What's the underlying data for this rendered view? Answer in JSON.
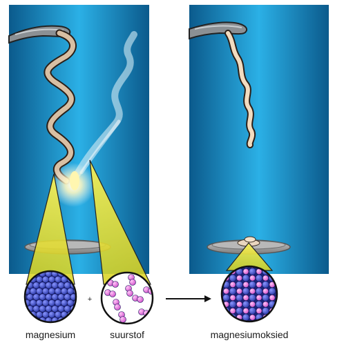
{
  "labels": {
    "magnesium": "magnesium",
    "plus": "+",
    "oxygen": "suurstof",
    "product": "magnesiumoksied"
  },
  "colors": {
    "panel_dark": "#0f5e92",
    "panel_light": "#2aa9e0",
    "ribbon": "#d8bfa3",
    "ribbon_edge": "#2a1f18",
    "tongs": "#8a8f93",
    "dish": "#a9a9a9",
    "magnesium_atom": "#3b4bc4",
    "oxygen_atom": "#e06ad8",
    "cone": "#f2ea3a",
    "flame": "#fff6b0",
    "smoke": "#d6ecf5"
  },
  "icons": {
    "reaction_arrow": "arrow-right-icon"
  }
}
